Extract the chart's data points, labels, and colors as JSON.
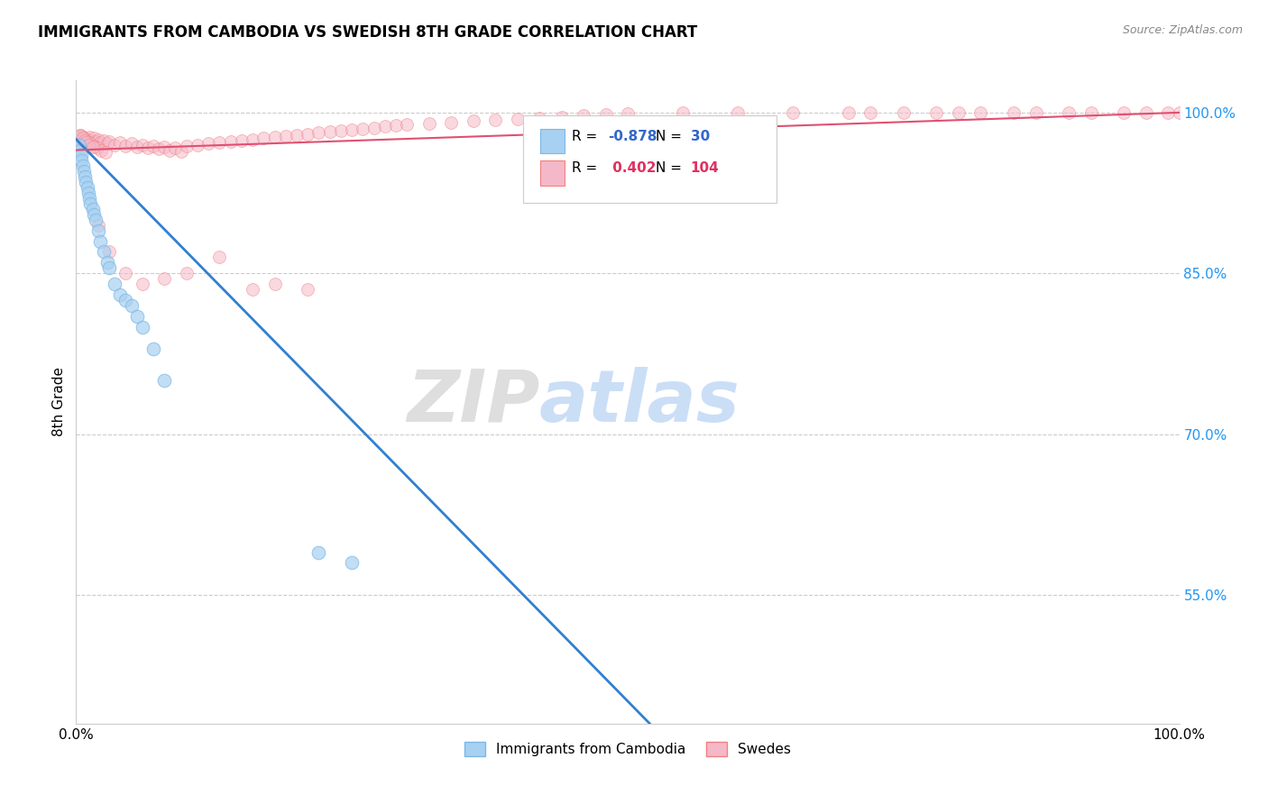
{
  "title": "IMMIGRANTS FROM CAMBODIA VS SWEDISH 8TH GRADE CORRELATION CHART",
  "source": "Source: ZipAtlas.com",
  "ylabel": "8th Grade",
  "ytick_labels": [
    "55.0%",
    "70.0%",
    "85.0%",
    "100.0%"
  ],
  "ytick_values": [
    55,
    70,
    85,
    100
  ],
  "xlim": [
    0.0,
    100.0
  ],
  "ylim": [
    43,
    103
  ],
  "blue_color": "#a8d0f0",
  "blue_edge": "#7ab8e8",
  "pink_color": "#f5b8c8",
  "pink_edge": "#f08080",
  "line_blue": "#3080d0",
  "line_pink": "#e05070",
  "R_blue": -0.878,
  "N_blue": 30,
  "R_pink": 0.402,
  "N_pink": 104,
  "watermark_zip": "ZIP",
  "watermark_atlas": "atlas",
  "legend_label_blue": "Immigrants from Cambodia",
  "legend_label_pink": "Swedes",
  "blue_line_x": [
    0.0,
    52.0
  ],
  "blue_line_y": [
    97.5,
    43.0
  ],
  "pink_line_x": [
    0.0,
    100.0
  ],
  "pink_line_y": [
    96.5,
    100.0
  ],
  "blue_points_x": [
    0.3,
    0.4,
    0.5,
    0.5,
    0.6,
    0.7,
    0.8,
    0.9,
    1.0,
    1.1,
    1.2,
    1.3,
    1.5,
    1.6,
    1.8,
    2.0,
    2.2,
    2.5,
    2.8,
    3.0,
    3.5,
    4.0,
    4.5,
    5.0,
    5.5,
    6.0,
    7.0,
    8.0,
    22.0,
    25.0
  ],
  "blue_points_y": [
    97.0,
    96.5,
    96.0,
    95.5,
    95.0,
    94.5,
    94.0,
    93.5,
    93.0,
    92.5,
    92.0,
    91.5,
    91.0,
    90.5,
    90.0,
    89.0,
    88.0,
    87.0,
    86.0,
    85.5,
    84.0,
    83.0,
    82.5,
    82.0,
    81.0,
    80.0,
    78.0,
    75.0,
    59.0,
    58.0
  ],
  "pink_points_x_dense": [
    0.1,
    0.2,
    0.3,
    0.4,
    0.5,
    0.6,
    0.7,
    0.8,
    0.9,
    1.0,
    1.2,
    1.4,
    1.6,
    1.8,
    2.0,
    2.2,
    2.5,
    2.8,
    3.0,
    3.5,
    4.0,
    4.5,
    5.0,
    5.5,
    6.0,
    6.5,
    7.0,
    7.5,
    8.0,
    8.5,
    9.0,
    9.5,
    10.0,
    11.0,
    12.0,
    13.0,
    14.0,
    15.0,
    16.0,
    17.0,
    18.0,
    19.0,
    20.0,
    21.0,
    22.0,
    23.0,
    24.0,
    25.0,
    26.0,
    27.0,
    28.0,
    29.0,
    30.0,
    32.0,
    34.0,
    36.0,
    38.0,
    40.0,
    42.0,
    44.0,
    46.0,
    48.0,
    50.0,
    55.0,
    60.0,
    65.0,
    70.0,
    72.0,
    75.0,
    78.0,
    80.0,
    82.0,
    85.0,
    87.0,
    90.0,
    92.0,
    95.0,
    97.0,
    99.0,
    100.0,
    2.0,
    3.0,
    4.5,
    6.0,
    8.0,
    10.0,
    13.0,
    16.0,
    18.0,
    21.0,
    0.5,
    0.7,
    1.0,
    1.3,
    1.6,
    1.9,
    2.3,
    2.7,
    0.4,
    0.6,
    0.8,
    0.9,
    1.1,
    1.5
  ],
  "pink_points_y_dense": [
    97.5,
    97.8,
    97.6,
    97.9,
    97.4,
    97.7,
    97.3,
    97.6,
    97.2,
    97.5,
    97.7,
    97.4,
    97.6,
    97.3,
    97.5,
    97.2,
    97.4,
    97.1,
    97.3,
    97.0,
    97.2,
    96.9,
    97.1,
    96.8,
    97.0,
    96.7,
    96.9,
    96.6,
    96.8,
    96.5,
    96.7,
    96.4,
    96.9,
    97.0,
    97.1,
    97.2,
    97.3,
    97.4,
    97.5,
    97.6,
    97.7,
    97.8,
    97.9,
    98.0,
    98.1,
    98.2,
    98.3,
    98.4,
    98.5,
    98.6,
    98.7,
    98.8,
    98.9,
    99.0,
    99.1,
    99.2,
    99.3,
    99.4,
    99.5,
    99.6,
    99.7,
    99.8,
    99.9,
    100.0,
    100.0,
    100.0,
    100.0,
    100.0,
    100.0,
    100.0,
    100.0,
    100.0,
    100.0,
    100.0,
    100.0,
    100.0,
    100.0,
    100.0,
    100.0,
    100.0,
    89.5,
    87.0,
    85.0,
    84.0,
    84.5,
    85.0,
    86.5,
    83.5,
    84.0,
    83.5,
    97.8,
    97.5,
    97.3,
    97.1,
    96.9,
    96.7,
    96.5,
    96.3,
    97.9,
    97.6,
    97.4,
    97.2,
    97.0,
    96.8
  ]
}
